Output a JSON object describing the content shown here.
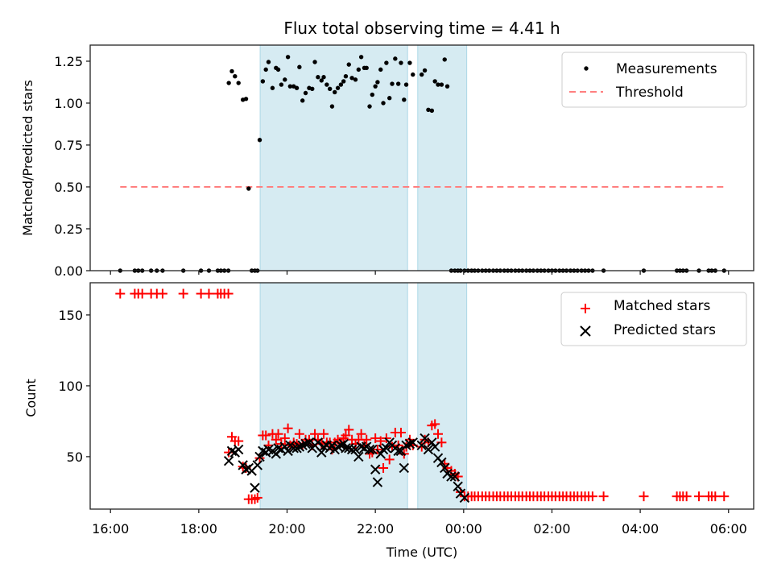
{
  "title": "Flux total observing time = 4.41 h",
  "chart_data": [
    {
      "type": "scatter",
      "panel": "top",
      "title": "Flux total observing time = 4.41 h",
      "xlabel": "",
      "ylabel": "Matched/Predicted stars",
      "xlim": [
        15.54,
        30.57
      ],
      "ylim": [
        0,
        1.346
      ],
      "yticks": [
        0.0,
        0.25,
        0.5,
        0.75,
        1.0,
        1.25
      ],
      "ytick_labels": [
        "0.00",
        "0.25",
        "0.50",
        "0.75",
        "1.00",
        "1.25"
      ],
      "xticks": [
        16,
        18,
        20,
        22,
        24,
        26,
        28,
        30
      ],
      "x_units": "hours UTC (values >= 24 are after midnight)",
      "grid": false,
      "legend_position": "top-right",
      "shaded_spans": [
        [
          19.39,
          22.73
        ],
        [
          22.96,
          24.07
        ]
      ],
      "shade_color": "#add8e6",
      "series": [
        {
          "name": "Measurements",
          "marker": "dot",
          "color": "#000000",
          "x": [
            16.22,
            16.55,
            16.63,
            16.72,
            16.92,
            17.05,
            17.18,
            17.65,
            18.05,
            18.23,
            18.43,
            18.5,
            18.58,
            18.67,
            18.68,
            18.75,
            18.82,
            18.9,
            19.0,
            19.07,
            19.13,
            19.2,
            19.27,
            19.33,
            19.38,
            19.45,
            19.52,
            19.58,
            19.67,
            19.75,
            19.8,
            19.87,
            19.95,
            20.02,
            20.07,
            20.15,
            20.22,
            20.28,
            20.35,
            20.42,
            20.5,
            20.57,
            20.63,
            20.7,
            20.78,
            20.83,
            20.9,
            20.97,
            21.02,
            21.08,
            21.15,
            21.22,
            21.28,
            21.33,
            21.4,
            21.47,
            21.55,
            21.62,
            21.68,
            21.75,
            21.8,
            21.87,
            21.93,
            22.0,
            22.05,
            22.12,
            22.18,
            22.25,
            22.32,
            22.38,
            22.45,
            22.52,
            22.58,
            22.65,
            22.7,
            22.78,
            22.85,
            23.05,
            23.12,
            23.2,
            23.28,
            23.35,
            23.42,
            23.5,
            23.57,
            23.63,
            23.72,
            23.8,
            23.87,
            23.93,
            24.02,
            24.1,
            24.18,
            24.25,
            24.33,
            24.42,
            24.5,
            24.58,
            24.67,
            24.75,
            24.83,
            24.92,
            25.0,
            25.08,
            25.17,
            25.25,
            25.33,
            25.42,
            25.5,
            25.58,
            25.67,
            25.75,
            25.83,
            25.92,
            26.0,
            26.08,
            26.17,
            26.25,
            26.33,
            26.42,
            26.5,
            26.58,
            26.67,
            26.75,
            26.83,
            26.92,
            27.17,
            28.08,
            28.83,
            28.9,
            28.97,
            29.05,
            29.33,
            29.55,
            29.62,
            29.7,
            29.9
          ],
          "y": [
            0,
            0,
            0,
            0,
            0,
            0,
            0,
            0,
            0,
            0,
            0,
            0,
            0,
            0,
            1.12,
            1.19,
            1.16,
            1.12,
            1.02,
            1.025,
            0.49,
            0,
            0,
            0,
            0.78,
            1.13,
            1.2,
            1.245,
            1.09,
            1.21,
            1.2,
            1.11,
            1.14,
            1.275,
            1.1,
            1.1,
            1.09,
            1.215,
            1.015,
            1.06,
            1.09,
            1.085,
            1.245,
            1.155,
            1.135,
            1.155,
            1.11,
            1.085,
            0.98,
            1.065,
            1.09,
            1.11,
            1.13,
            1.16,
            1.23,
            1.15,
            1.14,
            1.2,
            1.275,
            1.21,
            1.21,
            0.98,
            1.05,
            1.1,
            1.125,
            1.2,
            1.0,
            1.24,
            1.03,
            1.115,
            1.265,
            1.115,
            1.24,
            1.02,
            1.11,
            1.24,
            1.17,
            1.17,
            1.195,
            0.96,
            0.955,
            1.13,
            1.11,
            1.11,
            1.26,
            1.1,
            0,
            0,
            0,
            0,
            0,
            0,
            0,
            0,
            0,
            0,
            0,
            0,
            0,
            0,
            0,
            0,
            0,
            0,
            0,
            0,
            0,
            0,
            0,
            0,
            0,
            0,
            0,
            0,
            0,
            0,
            0,
            0,
            0,
            0,
            0,
            0,
            0,
            0,
            0,
            0,
            0,
            0,
            0,
            0,
            0,
            0,
            0,
            0,
            0,
            0,
            0
          ]
        },
        {
          "name": "Threshold",
          "type": "line",
          "style": "dashed",
          "color": "#ff7f7f",
          "x": [
            16.22,
            29.9
          ],
          "y": [
            0.5,
            0.5
          ]
        }
      ]
    },
    {
      "type": "scatter",
      "panel": "bottom",
      "xlabel": "Time (UTC)",
      "ylabel": "Count",
      "xlim": [
        15.54,
        30.57
      ],
      "ylim": [
        13,
        172.7
      ],
      "yticks": [
        50,
        100,
        150
      ],
      "ytick_labels": [
        "50",
        "100",
        "150"
      ],
      "xticks": [
        16,
        18,
        20,
        22,
        24,
        26,
        28,
        30
      ],
      "xtick_labels": [
        "16:00",
        "18:00",
        "20:00",
        "22:00",
        "00:00",
        "02:00",
        "04:00",
        "06:00"
      ],
      "grid": false,
      "legend_position": "top-right",
      "shaded_spans": [
        [
          19.39,
          22.73
        ],
        [
          22.96,
          24.07
        ]
      ],
      "shade_color": "#add8e6",
      "series": [
        {
          "name": "Matched stars",
          "marker": "plus",
          "color": "#ff0000",
          "x": [
            16.22,
            16.55,
            16.63,
            16.72,
            16.92,
            17.05,
            17.18,
            17.65,
            18.05,
            18.23,
            18.43,
            18.5,
            18.58,
            18.67,
            18.68,
            18.75,
            18.82,
            18.9,
            19.0,
            19.07,
            19.13,
            19.2,
            19.27,
            19.33,
            19.38,
            19.45,
            19.52,
            19.58,
            19.67,
            19.75,
            19.8,
            19.87,
            19.95,
            20.02,
            20.07,
            20.15,
            20.22,
            20.28,
            20.35,
            20.42,
            20.5,
            20.57,
            20.63,
            20.7,
            20.78,
            20.83,
            20.9,
            20.97,
            21.02,
            21.08,
            21.15,
            21.22,
            21.28,
            21.33,
            21.4,
            21.47,
            21.55,
            21.62,
            21.68,
            21.75,
            21.8,
            21.87,
            21.93,
            22.0,
            22.05,
            22.12,
            22.18,
            22.25,
            22.32,
            22.38,
            22.45,
            22.52,
            22.58,
            22.65,
            22.7,
            22.78,
            22.85,
            23.05,
            23.12,
            23.2,
            23.28,
            23.35,
            23.42,
            23.5,
            23.57,
            23.63,
            23.72,
            23.8,
            23.87,
            23.93,
            24.02,
            24.1,
            24.18,
            24.25,
            24.33,
            24.42,
            24.5,
            24.58,
            24.67,
            24.75,
            24.83,
            24.92,
            25.0,
            25.08,
            25.17,
            25.25,
            25.33,
            25.42,
            25.5,
            25.58,
            25.67,
            25.75,
            25.83,
            25.92,
            26.0,
            26.08,
            26.17,
            26.25,
            26.33,
            26.42,
            26.5,
            26.58,
            26.67,
            26.75,
            26.83,
            26.92,
            27.17,
            28.08,
            28.83,
            28.9,
            28.97,
            29.05,
            29.33,
            29.55,
            29.62,
            29.7,
            29.9
          ],
          "y": [
            165,
            165,
            165,
            165,
            165,
            165,
            165,
            165,
            165,
            165,
            165,
            165,
            165,
            165,
            53,
            64,
            61,
            61,
            43,
            42,
            20,
            20,
            20,
            21,
            49,
            65,
            65,
            58,
            66,
            62,
            66,
            59,
            63,
            70,
            58,
            60,
            59,
            66,
            58,
            62,
            62,
            58,
            66,
            62,
            59,
            66,
            60,
            60,
            55,
            60,
            62,
            60,
            63,
            65,
            69,
            62,
            59,
            62,
            66,
            58,
            62,
            52,
            53,
            63,
            55,
            61,
            42,
            63,
            48,
            57,
            67,
            58,
            67,
            52,
            57,
            62,
            58,
            57,
            62,
            60,
            72,
            73,
            66,
            60,
            45,
            42,
            40,
            38,
            36,
            25,
            22,
            22,
            22,
            22,
            22,
            22,
            22,
            22,
            22,
            22,
            22,
            22,
            22,
            22,
            22,
            22,
            22,
            22,
            22,
            22,
            22,
            22,
            22,
            22,
            22,
            22,
            22,
            22,
            22,
            22,
            22,
            22,
            22,
            22,
            22,
            22,
            22,
            22,
            22,
            22,
            22,
            22,
            22,
            22,
            22,
            22,
            22
          ]
        },
        {
          "name": "Predicted stars",
          "marker": "x",
          "color": "#000000",
          "x": [
            18.68,
            18.75,
            18.82,
            18.9,
            19.0,
            19.07,
            19.13,
            19.2,
            19.27,
            19.33,
            19.38,
            19.45,
            19.52,
            19.58,
            19.67,
            19.75,
            19.8,
            19.87,
            19.95,
            20.02,
            20.07,
            20.15,
            20.22,
            20.28,
            20.35,
            20.42,
            20.5,
            20.57,
            20.63,
            20.7,
            20.78,
            20.83,
            20.9,
            20.97,
            21.02,
            21.08,
            21.15,
            21.22,
            21.28,
            21.33,
            21.4,
            21.47,
            21.55,
            21.62,
            21.68,
            21.75,
            21.8,
            21.87,
            21.93,
            22.0,
            22.05,
            22.12,
            22.18,
            22.25,
            22.32,
            22.38,
            22.45,
            22.52,
            22.58,
            22.65,
            22.7,
            22.78,
            22.85,
            23.05,
            23.12,
            23.2,
            23.28,
            23.35,
            23.42,
            23.5,
            23.57,
            23.63,
            23.72,
            23.8,
            23.87,
            23.93,
            24.02
          ],
          "y": [
            47,
            54,
            53,
            55,
            44,
            41,
            42,
            40,
            28,
            44,
            50,
            54,
            53,
            55,
            54,
            52,
            56,
            55,
            57,
            54,
            58,
            56,
            56,
            57,
            58,
            59,
            60,
            56,
            58,
            60,
            53,
            57,
            58,
            56,
            58,
            55,
            57,
            58,
            59,
            56,
            56,
            55,
            55,
            50,
            57,
            56,
            57,
            55,
            55,
            41,
            32,
            52,
            55,
            56,
            60,
            58,
            56,
            54,
            54,
            42,
            58,
            59,
            60,
            58,
            63,
            55,
            60,
            57,
            49,
            46,
            42,
            38,
            36,
            36,
            29,
            24,
            21
          ]
        }
      ]
    }
  ]
}
